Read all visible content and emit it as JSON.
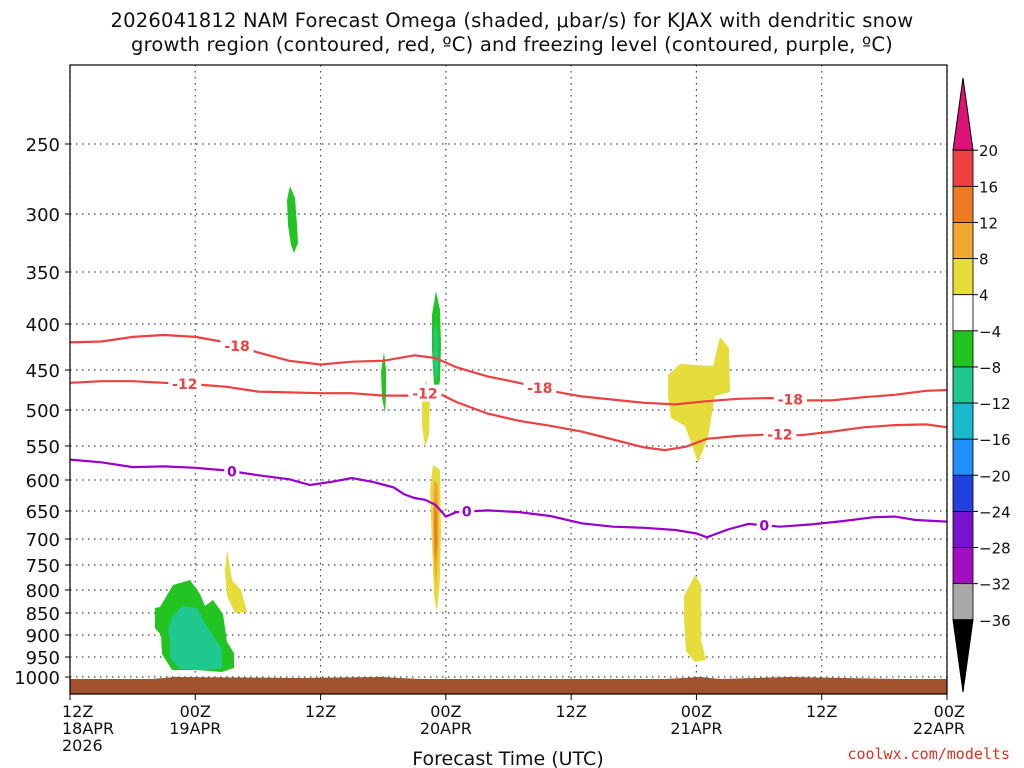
{
  "chart_data": {
    "type": "contour",
    "title_line1": "2026041812 NAM Forecast Omega (shaded, μbar/s) for KJAX with dendritic snow",
    "title_line2": "growth region (contoured, red, ºC) and freezing level (contoured, purple, ºC)",
    "xlabel": "Forecast Time (UTC)",
    "ylabel": "",
    "x_range_hours": [
      0,
      84
    ],
    "y_range_mb": [
      190,
      1030
    ],
    "x_ticks": [
      {
        "hour": 0,
        "line1": "12Z",
        "line2": "18APR",
        "line3": "2026"
      },
      {
        "hour": 12,
        "line1": "00Z",
        "line2": "19APR",
        "line3": ""
      },
      {
        "hour": 24,
        "line1": "12Z",
        "line2": "",
        "line3": ""
      },
      {
        "hour": 36,
        "line1": "00Z",
        "line2": "20APR",
        "line3": ""
      },
      {
        "hour": 48,
        "line1": "12Z",
        "line2": "",
        "line3": ""
      },
      {
        "hour": 60,
        "line1": "00Z",
        "line2": "21APR",
        "line3": ""
      },
      {
        "hour": 72,
        "line1": "12Z",
        "line2": "",
        "line3": ""
      },
      {
        "hour": 84,
        "line1": "00Z",
        "line2": "22APR",
        "line3": ""
      }
    ],
    "y_ticks": [
      250,
      300,
      350,
      400,
      450,
      500,
      550,
      600,
      650,
      700,
      750,
      800,
      850,
      900,
      950,
      1000
    ],
    "series": [
      {
        "name": "-18",
        "color": "#ee4040",
        "points": [
          [
            0,
            420
          ],
          [
            3,
            419
          ],
          [
            6,
            414
          ],
          [
            9,
            412
          ],
          [
            12,
            414
          ],
          [
            15,
            420
          ],
          [
            18,
            431
          ],
          [
            21,
            440
          ],
          [
            24,
            444
          ],
          [
            27,
            441
          ],
          [
            30,
            440
          ],
          [
            33,
            434
          ],
          [
            35,
            437
          ],
          [
            37,
            447
          ],
          [
            40,
            458
          ],
          [
            43,
            466
          ],
          [
            46,
            476
          ],
          [
            49,
            483
          ],
          [
            52,
            487
          ],
          [
            55,
            491
          ],
          [
            58,
            493
          ],
          [
            61,
            489
          ],
          [
            64,
            486
          ],
          [
            67,
            485
          ],
          [
            70,
            488
          ],
          [
            73,
            488
          ],
          [
            76,
            484
          ],
          [
            79,
            481
          ],
          [
            82,
            476
          ],
          [
            84,
            475
          ]
        ],
        "labels": [
          [
            16,
            "-18"
          ],
          [
            45,
            "-18"
          ],
          [
            69,
            "-18"
          ]
        ]
      },
      {
        "name": "-12",
        "color": "#ee4040",
        "points": [
          [
            0,
            466
          ],
          [
            3,
            464
          ],
          [
            6,
            464
          ],
          [
            9,
            466
          ],
          [
            12,
            468
          ],
          [
            15,
            471
          ],
          [
            18,
            477
          ],
          [
            21,
            478
          ],
          [
            24,
            479
          ],
          [
            27,
            479
          ],
          [
            30,
            482
          ],
          [
            33,
            482
          ],
          [
            35,
            477
          ],
          [
            37,
            490
          ],
          [
            40,
            505
          ],
          [
            43,
            515
          ],
          [
            46,
            522
          ],
          [
            49,
            530
          ],
          [
            52,
            541
          ],
          [
            55,
            552
          ],
          [
            57,
            556
          ],
          [
            59,
            551
          ],
          [
            61,
            540
          ],
          [
            64,
            536
          ],
          [
            67,
            534
          ],
          [
            70,
            535
          ],
          [
            73,
            530
          ],
          [
            76,
            524
          ],
          [
            79,
            521
          ],
          [
            82,
            520
          ],
          [
            84,
            524
          ]
        ],
        "labels": [
          [
            11,
            "-12"
          ],
          [
            34,
            "-12"
          ],
          [
            68,
            "-12"
          ]
        ]
      },
      {
        "name": "0",
        "color": "#9900cc",
        "points": [
          [
            0,
            570
          ],
          [
            3,
            574
          ],
          [
            6,
            581
          ],
          [
            9,
            580
          ],
          [
            12,
            582
          ],
          [
            15,
            586
          ],
          [
            18,
            593
          ],
          [
            21,
            599
          ],
          [
            23,
            608
          ],
          [
            25,
            603
          ],
          [
            27,
            597
          ],
          [
            29,
            603
          ],
          [
            31,
            612
          ],
          [
            32,
            623
          ],
          [
            33,
            629
          ],
          [
            34,
            632
          ],
          [
            35,
            640
          ],
          [
            36,
            660
          ],
          [
            37,
            652
          ],
          [
            40,
            649
          ],
          [
            43,
            652
          ],
          [
            46,
            659
          ],
          [
            49,
            672
          ],
          [
            52,
            678
          ],
          [
            55,
            680
          ],
          [
            58,
            684
          ],
          [
            60,
            690
          ],
          [
            61,
            697
          ],
          [
            63,
            683
          ],
          [
            65,
            673
          ],
          [
            68,
            678
          ],
          [
            71,
            674
          ],
          [
            74,
            668
          ],
          [
            77,
            661
          ],
          [
            79,
            660
          ],
          [
            81,
            666
          ],
          [
            84,
            669
          ]
        ],
        "labels": [
          [
            15.5,
            "0"
          ],
          [
            38,
            "0"
          ],
          [
            66.5,
            "0"
          ]
        ]
      }
    ],
    "shaded_regions": [
      {
        "name": "omega -8 to -4",
        "color": "#22c422"
      },
      {
        "name": "omega -12 to -8",
        "color": "#20c890"
      },
      {
        "name": "omega 4 to 8",
        "color": "#e6dc3c"
      },
      {
        "name": "omega 8 to 12",
        "color": "#f0a830"
      },
      {
        "name": "omega 12 to 16",
        "color": "#ee7a22"
      }
    ],
    "colorbar": {
      "labels": [
        "20",
        "16",
        "12",
        "8",
        "4",
        "−4",
        "−8",
        "−12",
        "−16",
        "−20",
        "−24",
        "−28",
        "−32",
        "−36"
      ],
      "colors": [
        "#dd1177",
        "#ee4040",
        "#ee7a22",
        "#f0a830",
        "#e6dc3c",
        "#ffffff",
        "#22c422",
        "#20c890",
        "#1ab8cc",
        "#1e90ff",
        "#2040e0",
        "#7a10d0",
        "#a010c0",
        "#a8a8a8",
        "#000000"
      ]
    },
    "terrain_color": "#a0522d",
    "credit": "coolwx.com/modelts"
  }
}
